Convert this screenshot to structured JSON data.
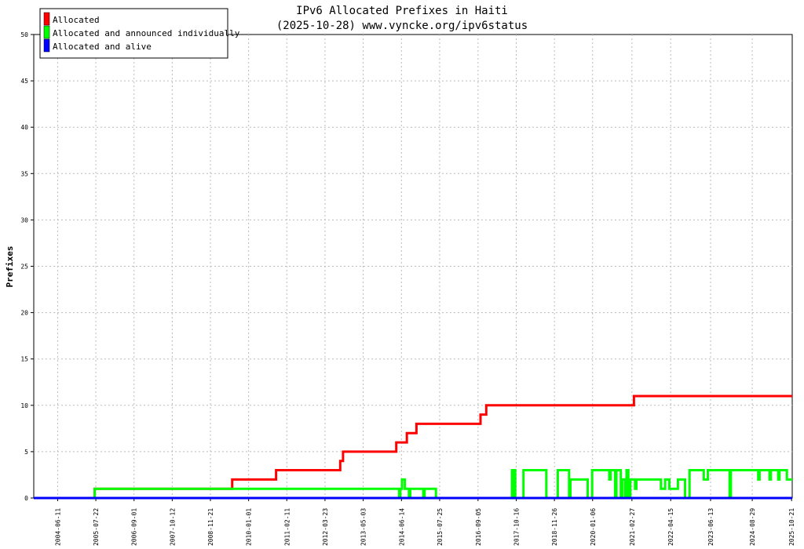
{
  "chart_data": {
    "type": "line",
    "title": "IPv6 Allocated Prefixes in Haiti",
    "subtitle": "(2025-10-28) www.vyncke.org/ipv6status",
    "ylabel": "Prefixes",
    "xlabel": "",
    "ylim": [
      0,
      50
    ],
    "yticks": [
      0,
      5,
      10,
      15,
      20,
      25,
      30,
      35,
      40,
      45,
      50
    ],
    "xlim": [
      "2003-10-01",
      "2025-10-28"
    ],
    "xticks": [
      "2004-06-11",
      "2005-07-22",
      "2006-09-01",
      "2007-10-12",
      "2008-11-21",
      "2010-01-01",
      "2011-02-11",
      "2012-03-23",
      "2013-05-03",
      "2014-06-14",
      "2015-07-25",
      "2016-09-05",
      "2017-10-16",
      "2018-11-26",
      "2020-01-06",
      "2021-02-27",
      "2022-04-15",
      "2023-06-13",
      "2024-08-29",
      "2025-10-21"
    ],
    "grid": true,
    "legend_position": "top-left",
    "series": [
      {
        "name": "Allocated",
        "color": "#ff0000",
        "step": true,
        "points": [
          [
            "2003-10-01",
            0
          ],
          [
            "2005-07-10",
            1
          ],
          [
            "2009-07-10",
            2
          ],
          [
            "2010-10-20",
            3
          ],
          [
            "2012-09-01",
            4
          ],
          [
            "2012-10-01",
            5
          ],
          [
            "2014-04-20",
            6
          ],
          [
            "2014-08-10",
            7
          ],
          [
            "2014-11-20",
            8
          ],
          [
            "2016-10-01",
            9
          ],
          [
            "2016-12-01",
            10
          ],
          [
            "2021-03-20",
            11
          ],
          [
            "2025-10-28",
            11
          ]
        ]
      },
      {
        "name": "Allocated and announced individually",
        "color": "#00ff00",
        "step": true,
        "points": [
          [
            "2003-10-01",
            0
          ],
          [
            "2005-07-10",
            1
          ],
          [
            "2014-05-20",
            0
          ],
          [
            "2014-06-01",
            1
          ],
          [
            "2014-06-20",
            2
          ],
          [
            "2014-07-20",
            1
          ],
          [
            "2014-09-01",
            0
          ],
          [
            "2014-09-15",
            1
          ],
          [
            "2015-02-01",
            0
          ],
          [
            "2015-02-15",
            1
          ],
          [
            "2015-06-15",
            0
          ],
          [
            "2017-09-01",
            3
          ],
          [
            "2017-09-10",
            0
          ],
          [
            "2017-09-25",
            3
          ],
          [
            "2017-10-05",
            0
          ],
          [
            "2018-01-01",
            3
          ],
          [
            "2018-09-01",
            0
          ],
          [
            "2019-01-01",
            3
          ],
          [
            "2019-05-01",
            0
          ],
          [
            "2019-05-15",
            2
          ],
          [
            "2019-11-15",
            0
          ],
          [
            "2020-01-01",
            3
          ],
          [
            "2020-07-01",
            2
          ],
          [
            "2020-07-15",
            3
          ],
          [
            "2020-09-01",
            0
          ],
          [
            "2020-09-15",
            3
          ],
          [
            "2020-11-01",
            0
          ],
          [
            "2020-11-15",
            2
          ],
          [
            "2020-12-15",
            0
          ],
          [
            "2021-01-01",
            3
          ],
          [
            "2021-01-20",
            0
          ],
          [
            "2021-02-10",
            2
          ],
          [
            "2021-04-01",
            1
          ],
          [
            "2021-04-15",
            2
          ],
          [
            "2022-01-01",
            1
          ],
          [
            "2022-02-15",
            2
          ],
          [
            "2022-04-01",
            1
          ],
          [
            "2022-07-01",
            2
          ],
          [
            "2022-09-15",
            0
          ],
          [
            "2022-11-01",
            3
          ],
          [
            "2023-04-01",
            2
          ],
          [
            "2023-05-15",
            3
          ],
          [
            "2024-01-01",
            0
          ],
          [
            "2024-01-15",
            3
          ],
          [
            "2024-11-01",
            2
          ],
          [
            "2024-11-15",
            3
          ],
          [
            "2025-03-01",
            2
          ],
          [
            "2025-03-15",
            3
          ],
          [
            "2025-06-01",
            2
          ],
          [
            "2025-06-15",
            3
          ],
          [
            "2025-09-01",
            2
          ],
          [
            "2025-10-28",
            2
          ]
        ]
      },
      {
        "name": "Allocated and alive",
        "color": "#0000ff",
        "step": true,
        "points": [
          [
            "2003-10-01",
            0
          ],
          [
            "2025-10-28",
            0
          ]
        ]
      }
    ]
  }
}
